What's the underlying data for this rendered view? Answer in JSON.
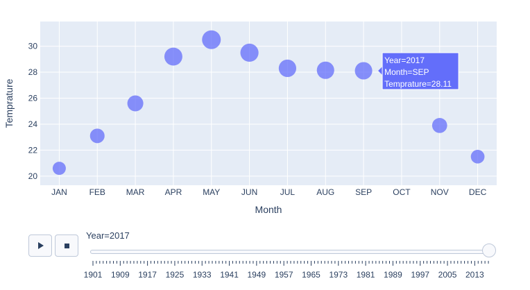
{
  "chart_data": {
    "type": "scatter",
    "xlabel": "Month",
    "ylabel": "Temprature",
    "categories": [
      "JAN",
      "FEB",
      "MAR",
      "APR",
      "MAY",
      "JUN",
      "JUL",
      "AUG",
      "SEP",
      "OCT",
      "NOV",
      "DEC"
    ],
    "values": [
      20.6,
      23.1,
      25.6,
      29.2,
      30.5,
      29.5,
      28.3,
      28.15,
      28.11,
      27.3,
      23.9,
      21.5
    ],
    "yticks": [
      "20",
      "22",
      "24",
      "26",
      "28",
      "30"
    ],
    "ylim": [
      19.3,
      31.9
    ],
    "marker_color": "#636efa",
    "plot_bg": "#e5ecf6",
    "grid": true,
    "hover": {
      "category": "SEP",
      "lines": [
        "Year=2017",
        "Month=SEP",
        "Temprature=28.11"
      ]
    }
  },
  "animation_controls": {
    "play_icon": "play-icon",
    "stop_icon": "stop-icon",
    "current_label": "Year=2017",
    "year_first": 1901,
    "year_last": 2017,
    "current_year": 2017,
    "tick_labels": [
      "1901",
      "1909",
      "1917",
      "1925",
      "1933",
      "1941",
      "1949",
      "1957",
      "1965",
      "1973",
      "1981",
      "1989",
      "1997",
      "2005",
      "2013"
    ]
  }
}
